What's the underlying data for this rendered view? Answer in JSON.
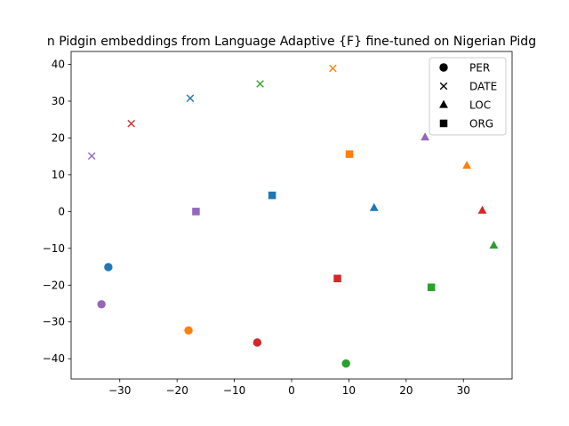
{
  "chart_data": {
    "type": "scatter",
    "title": "n Pidgin embeddings from Language Adaptive {F} fine-tuned on Nigerian Pidg",
    "xlabel": "",
    "ylabel": "",
    "xlim": [
      -38.5,
      38.5
    ],
    "ylim": [
      -45.5,
      43.5
    ],
    "xticks": [
      -30,
      -20,
      -10,
      0,
      10,
      20,
      30
    ],
    "yticks": [
      -40,
      -30,
      -20,
      -10,
      0,
      10,
      20,
      30,
      40
    ],
    "grid": false,
    "legend_position": "top-right",
    "legend": [
      {
        "label": "PER",
        "marker": "circle"
      },
      {
        "label": "DATE",
        "marker": "x"
      },
      {
        "label": "LOC",
        "marker": "triangle"
      },
      {
        "label": "ORG",
        "marker": "square"
      }
    ],
    "points": [
      {
        "x": -32.0,
        "y": -15.1,
        "marker": "circle",
        "color": "#1f77b4"
      },
      {
        "x": -33.2,
        "y": -25.2,
        "marker": "circle",
        "color": "#9467bd"
      },
      {
        "x": -18.0,
        "y": -32.3,
        "marker": "circle",
        "color": "#ff7f0e"
      },
      {
        "x": -6.0,
        "y": -35.6,
        "marker": "circle",
        "color": "#d62728"
      },
      {
        "x": 9.5,
        "y": -41.3,
        "marker": "circle",
        "color": "#2ca02c"
      },
      {
        "x": -34.9,
        "y": 15.1,
        "marker": "x",
        "color": "#9467bd"
      },
      {
        "x": -28.0,
        "y": 23.9,
        "marker": "x",
        "color": "#d62728"
      },
      {
        "x": -17.7,
        "y": 30.8,
        "marker": "x",
        "color": "#1f77b4"
      },
      {
        "x": -5.5,
        "y": 34.7,
        "marker": "x",
        "color": "#2ca02c"
      },
      {
        "x": 7.2,
        "y": 38.9,
        "marker": "x",
        "color": "#ff7f0e"
      },
      {
        "x": 14.4,
        "y": 1.0,
        "marker": "triangle",
        "color": "#1f77b4"
      },
      {
        "x": 23.3,
        "y": 20.2,
        "marker": "triangle",
        "color": "#9467bd"
      },
      {
        "x": 30.6,
        "y": 12.5,
        "marker": "triangle",
        "color": "#ff7f0e"
      },
      {
        "x": 33.3,
        "y": 0.3,
        "marker": "triangle",
        "color": "#d62728"
      },
      {
        "x": 35.3,
        "y": -9.2,
        "marker": "triangle",
        "color": "#2ca02c"
      },
      {
        "x": -16.7,
        "y": 0.0,
        "marker": "square",
        "color": "#9467bd"
      },
      {
        "x": -3.4,
        "y": 4.4,
        "marker": "square",
        "color": "#1f77b4"
      },
      {
        "x": 10.1,
        "y": 15.6,
        "marker": "square",
        "color": "#ff7f0e"
      },
      {
        "x": 8.0,
        "y": -18.2,
        "marker": "square",
        "color": "#d62728"
      },
      {
        "x": 24.4,
        "y": -20.6,
        "marker": "square",
        "color": "#2ca02c"
      }
    ]
  }
}
